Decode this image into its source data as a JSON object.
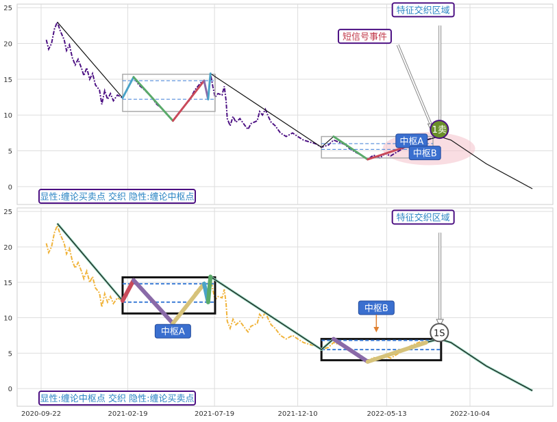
{
  "chart_data": [
    {
      "type": "line",
      "title": "",
      "xlabel": "",
      "ylabel": "",
      "ylim": [
        -2.5,
        25.5
      ],
      "yticks": [
        0,
        5,
        10,
        15,
        20,
        25
      ],
      "grid": true,
      "price_color": "#4b0f82",
      "series": [
        {
          "values": [
            [
              "2020-10-01",
              20.5
            ],
            [
              "2020-10-05",
              19.2
            ],
            [
              "2020-10-10",
              20.0
            ],
            [
              "2020-10-15",
              22.0
            ],
            [
              "2020-10-20",
              23.0
            ],
            [
              "2020-10-25",
              21.8
            ],
            [
              "2020-11-01",
              20.5
            ],
            [
              "2020-11-05",
              19.0
            ],
            [
              "2020-11-10",
              19.8
            ],
            [
              "2020-11-15",
              18.0
            ],
            [
              "2020-11-20",
              17.0
            ],
            [
              "2020-11-25",
              17.8
            ],
            [
              "2020-12-01",
              16.5
            ],
            [
              "2020-12-05",
              15.5
            ],
            [
              "2020-12-10",
              16.6
            ],
            [
              "2020-12-15",
              15.0
            ],
            [
              "2020-12-20",
              15.8
            ],
            [
              "2020-12-25",
              14.2
            ],
            [
              "2021-01-01",
              13.5
            ],
            [
              "2021-01-05",
              11.5
            ],
            [
              "2021-01-10",
              13.4
            ],
            [
              "2021-01-15",
              12.2
            ],
            [
              "2021-01-20",
              13.0
            ],
            [
              "2021-01-25",
              12.0
            ],
            [
              "2021-02-01",
              12.8
            ],
            [
              "2021-02-10",
              12.4
            ],
            [
              "2021-02-20",
              14.0
            ],
            [
              "2021-03-01",
              15.3
            ],
            [
              "2021-03-10",
              14.2
            ],
            [
              "2021-03-20",
              13.5
            ],
            [
              "2021-04-01",
              12.5
            ],
            [
              "2021-04-10",
              11.5
            ],
            [
              "2021-04-20",
              10.8
            ],
            [
              "2021-05-01",
              9.8
            ],
            [
              "2021-05-08",
              9.2
            ],
            [
              "2021-05-15",
              10.0
            ],
            [
              "2021-05-25",
              11.0
            ],
            [
              "2021-06-05",
              12.0
            ],
            [
              "2021-06-15",
              13.5
            ],
            [
              "2021-06-25",
              14.5
            ],
            [
              "2021-07-01",
              14.8
            ],
            [
              "2021-07-05",
              13.2
            ],
            [
              "2021-07-08",
              12.2
            ],
            [
              "2021-07-12",
              15.8
            ],
            [
              "2021-07-16",
              14.0
            ],
            [
              "2021-07-20",
              12.5
            ],
            [
              "2021-07-25",
              13.0
            ],
            [
              "2021-08-01",
              12.8
            ],
            [
              "2021-08-05",
              14.0
            ],
            [
              "2021-08-08",
              12.0
            ],
            [
              "2021-08-10",
              9.5
            ],
            [
              "2021-08-15",
              8.5
            ],
            [
              "2021-08-20",
              9.8
            ],
            [
              "2021-08-25",
              9.0
            ],
            [
              "2021-09-01",
              9.5
            ],
            [
              "2021-09-10",
              8.5
            ],
            [
              "2021-09-15",
              8.0
            ],
            [
              "2021-09-20",
              8.8
            ],
            [
              "2021-10-01",
              9.2
            ],
            [
              "2021-10-05",
              10.5
            ],
            [
              "2021-10-10",
              10.0
            ],
            [
              "2021-10-15",
              10.8
            ],
            [
              "2021-10-20",
              9.8
            ],
            [
              "2021-10-25",
              9.0
            ],
            [
              "2021-11-01",
              8.5
            ],
            [
              "2021-11-10",
              7.5
            ],
            [
              "2021-11-20",
              7.0
            ],
            [
              "2021-12-01",
              7.5
            ],
            [
              "2021-12-10",
              7.0
            ],
            [
              "2021-12-20",
              6.5
            ],
            [
              "2022-01-01",
              6.2
            ],
            [
              "2022-01-10",
              6.0
            ],
            [
              "2022-01-20",
              5.5
            ],
            [
              "2022-02-01",
              5.8
            ],
            [
              "2022-02-10",
              6.5
            ],
            [
              "2022-02-20",
              6.2
            ],
            [
              "2022-03-01",
              5.9
            ],
            [
              "2022-03-10",
              5.3
            ],
            [
              "2022-03-20",
              4.8
            ],
            [
              "2022-04-01",
              4.3
            ],
            [
              "2022-04-10",
              3.8
            ],
            [
              "2022-04-20",
              4.4
            ],
            [
              "2022-05-01",
              4.0
            ],
            [
              "2022-05-10",
              4.6
            ],
            [
              "2022-05-20",
              4.3
            ],
            [
              "2022-06-01",
              4.9
            ],
            [
              "2022-06-10",
              5.3
            ],
            [
              "2022-06-20",
              5.9
            ],
            [
              "2022-07-01",
              6.3
            ],
            [
              "2022-07-10",
              6.6
            ],
            [
              "2022-07-20",
              6.5
            ],
            [
              "2022-08-01",
              6.8
            ],
            [
              "2022-08-10",
              7.0
            ]
          ]
        }
      ],
      "trend_line": [
        [
          "2020-10-20",
          23.0
        ],
        [
          "2021-02-10",
          12.4
        ],
        [
          "2021-03-01",
          15.3
        ],
        [
          "2021-05-08",
          9.2
        ],
        [
          "2021-07-01",
          14.8
        ],
        [
          "2021-07-08",
          12.2
        ],
        [
          "2021-07-12",
          15.8
        ],
        [
          "2022-01-20",
          5.5
        ],
        [
          "2022-02-10",
          7.0
        ],
        [
          "2022-04-10",
          3.8
        ],
        [
          "2022-07-20",
          6.5
        ],
        [
          "2022-08-12",
          7.0
        ],
        [
          "2022-09-01",
          6.5
        ],
        [
          "2022-11-01",
          3.2
        ],
        [
          "2023-01-20",
          -0.3
        ]
      ],
      "pen_segments": [
        {
          "color": "#4aa3c8",
          "points": [
            [
              "2021-02-10",
              12.4
            ],
            [
              "2021-03-01",
              15.3
            ]
          ]
        },
        {
          "color": "#5aaa6a",
          "points": [
            [
              "2021-03-01",
              15.3
            ],
            [
              "2021-05-08",
              9.2
            ]
          ]
        },
        {
          "color": "#c94a5a",
          "points": [
            [
              "2021-05-08",
              9.2
            ],
            [
              "2021-07-01",
              14.8
            ]
          ]
        },
        {
          "color": "#8a6aa8",
          "points": [
            [
              "2021-07-01",
              14.8
            ],
            [
              "2021-07-08",
              12.2
            ]
          ]
        },
        {
          "color": "#4aa3c8",
          "points": [
            [
              "2021-07-08",
              12.2
            ],
            [
              "2021-07-12",
              15.8
            ]
          ]
        },
        {
          "color": "#5aaa6a",
          "points": [
            [
              "2022-02-10",
              7.0
            ],
            [
              "2022-04-10",
              3.8
            ]
          ]
        },
        {
          "color": "#c94a5a",
          "points": [
            [
              "2022-04-10",
              3.8
            ],
            [
              "2022-07-20",
              6.5
            ]
          ]
        }
      ],
      "zhongshu": [
        {
          "x0": "2021-02-10",
          "x1": "2021-07-20",
          "top": 15.7,
          "bottom": 10.5,
          "zg": 14.8,
          "zd": 12.2,
          "label": ""
        },
        {
          "x0": "2022-01-20",
          "x1": "2022-08-01",
          "top": 7.0,
          "bottom": 4.0,
          "zg": 6.0,
          "zd": 5.2,
          "label": ""
        }
      ],
      "events": [
        {
          "label": "中枢A",
          "x": "2022-06-25",
          "y": 6.4,
          "fill": "#3a6fcf",
          "color": "#ffffff"
        },
        {
          "label": "中枢B",
          "x": "2022-07-18",
          "y": 4.7,
          "fill": "#3a6fcf",
          "color": "#ffffff"
        },
        {
          "label": "1卖",
          "x": "2022-08-12",
          "y": 8.0,
          "fill": "#6a8f2a",
          "color": "#ffffff"
        }
      ],
      "callouts": [
        {
          "label": "特征交织区域",
          "x": "2022-07-15",
          "y": 24.7,
          "color": "#2a84c4",
          "border": "#4b0f82",
          "target_x": "2022-08-13",
          "target_y": 8.2,
          "from_x": "2022-08-13",
          "from_y": 22.5
        },
        {
          "label": "短信号事件",
          "x": "2022-04-05",
          "y": 21.0,
          "color": "#c0394a",
          "border": "#4b0f82",
          "target_x": "2022-07-29",
          "target_y": 8.0,
          "from_x": "2022-06-01",
          "from_y": 19.8
        }
      ],
      "legend_text": "显性:缠论买卖点 交织 隐性:缠论中枢点",
      "legend_color": "#2a84c4",
      "legend_border": "#4b0f82",
      "ellipse": {
        "cx": "2022-07-25",
        "cy": 5.3,
        "rx_days": 80,
        "ry": 2.3,
        "color": "#f5c7cf"
      }
    },
    {
      "type": "line",
      "title": "",
      "xlabel": "",
      "ylabel": "",
      "ylim": [
        -2.5,
        25.5
      ],
      "yticks": [
        0,
        5,
        10,
        15,
        20,
        25
      ],
      "xticks": [
        "2020-09-22",
        "2021-02-19",
        "2021-07-19",
        "2021-12-10",
        "2022-05-13",
        "2022-10-04"
      ],
      "grid": true,
      "price_color": "#f0b33a",
      "series": [
        {
          "values": "same-as-first"
        }
      ],
      "trend_line": [
        [
          "2020-10-20",
          23.3
        ],
        [
          "2021-02-10",
          12.4
        ],
        [
          "2021-03-01",
          15.3
        ],
        [
          "2021-05-08",
          9.2
        ],
        [
          "2021-07-01",
          14.8
        ],
        [
          "2021-07-08",
          12.2
        ],
        [
          "2021-07-12",
          15.8
        ],
        [
          "2022-01-20",
          5.5
        ],
        [
          "2022-02-10",
          7.0
        ],
        [
          "2022-04-10",
          3.8
        ],
        [
          "2022-07-20",
          6.5
        ],
        [
          "2022-08-12",
          7.0
        ],
        [
          "2022-09-01",
          6.5
        ],
        [
          "2022-11-01",
          3.2
        ],
        [
          "2023-01-20",
          -0.3
        ]
      ],
      "pen_segments": [
        {
          "color": "#c94a5a",
          "points": [
            [
              "2021-02-10",
              12.4
            ],
            [
              "2021-03-01",
              15.3
            ]
          ]
        },
        {
          "color": "#8a6aa8",
          "points": [
            [
              "2021-03-01",
              15.3
            ],
            [
              "2021-05-08",
              9.2
            ]
          ]
        },
        {
          "color": "#d6c27a",
          "points": [
            [
              "2021-05-08",
              9.2
            ],
            [
              "2021-07-01",
              14.8
            ]
          ]
        },
        {
          "color": "#4aa3c8",
          "points": [
            [
              "2021-07-01",
              14.8
            ],
            [
              "2021-07-08",
              12.2
            ]
          ]
        },
        {
          "color": "#5aaa6a",
          "points": [
            [
              "2021-07-08",
              12.2
            ],
            [
              "2021-07-12",
              15.8
            ]
          ]
        },
        {
          "color": "#8a6aa8",
          "points": [
            [
              "2022-02-10",
              7.0
            ],
            [
              "2022-04-10",
              3.8
            ]
          ]
        },
        {
          "color": "#d6c27a",
          "points": [
            [
              "2022-04-10",
              3.8
            ],
            [
              "2022-07-20",
              6.5
            ]
          ]
        }
      ],
      "zhongshu": [
        {
          "x0": "2021-02-10",
          "x1": "2021-07-20",
          "top": 15.7,
          "bottom": 10.6,
          "zg": 14.8,
          "zd": 12.2,
          "label": "中枢A",
          "label_x": "2021-05-08",
          "label_y": 8.1
        },
        {
          "x0": "2022-01-20",
          "x1": "2022-08-15",
          "top": 7.0,
          "bottom": 4.0,
          "zg": 6.8,
          "zd": 5.5,
          "label": "中枢B",
          "label_x": "2022-04-25",
          "label_y": 11.4
        }
      ],
      "events": [
        {
          "label": "1S",
          "x": "2022-08-12",
          "y": 7.9,
          "fill": "#ffffff",
          "color": "#222222"
        }
      ],
      "callouts": [
        {
          "label": "特征交织区域",
          "x": "2022-07-15",
          "y": 24.2,
          "color": "#2a84c4",
          "border": "#4b0f82",
          "target_x": "2022-08-13",
          "target_y": 9.0,
          "from_x": "2022-08-13",
          "from_y": 22.0
        }
      ],
      "legend_text": "显性:缠论中枢点 交织 隐性:缠论买卖点",
      "legend_color": "#2a84c4",
      "legend_border": "#4b0f82"
    }
  ]
}
